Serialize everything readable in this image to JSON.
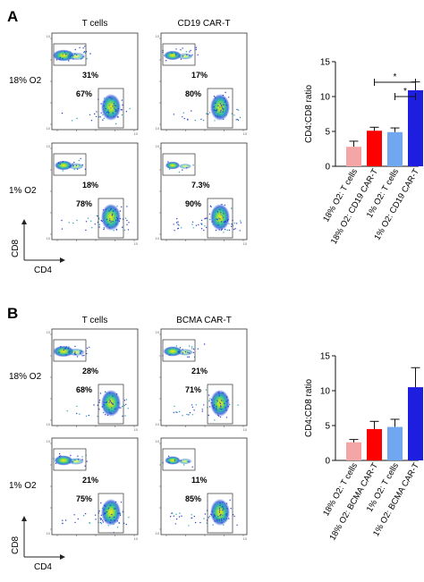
{
  "panels": [
    {
      "label": "A",
      "columns": [
        "T cells",
        "CD19 CAR-T"
      ],
      "rows": [
        "18% O2",
        "1% O2"
      ],
      "cd4_label": "CD4",
      "cd8_label": "CD8",
      "gates": [
        {
          "row": 0,
          "col": 0,
          "cd8": "31%",
          "cd4": "67%"
        },
        {
          "row": 0,
          "col": 1,
          "cd8": "17%",
          "cd4": "80%"
        },
        {
          "row": 1,
          "col": 0,
          "cd8": "18%",
          "cd4": "78%"
        },
        {
          "row": 1,
          "col": 1,
          "cd8": "7.3%",
          "cd4": "90%"
        }
      ]
    },
    {
      "label": "B",
      "columns": [
        "T cells",
        "BCMA CAR-T"
      ],
      "rows": [
        "18% O2",
        "1% O2"
      ],
      "cd4_label": "CD4",
      "cd8_label": "CD8",
      "gates": [
        {
          "row": 0,
          "col": 0,
          "cd8": "28%",
          "cd4": "68%"
        },
        {
          "row": 0,
          "col": 1,
          "cd8": "21%",
          "cd4": "71%"
        },
        {
          "row": 1,
          "col": 0,
          "cd8": "21%",
          "cd4": "75%"
        },
        {
          "row": 1,
          "col": 1,
          "cd8": "11%",
          "cd4": "85%"
        }
      ]
    }
  ],
  "chart_data": [
    {
      "type": "bar",
      "ylabel": "CD4:CD8 ratio",
      "ylim": [
        0,
        15
      ],
      "yticks": [
        0,
        5,
        10,
        15
      ],
      "categories": [
        "18% O2: T cells",
        "18% O2: CD19 CAR-T",
        "1% O2: T cells",
        "1% O2: CD19 CAR-T"
      ],
      "values": [
        2.8,
        5.1,
        4.9,
        10.9
      ],
      "errors": [
        0.8,
        0.5,
        0.6,
        1.2
      ],
      "colors": [
        "#f4a6a6",
        "#ff0000",
        "#6fa8f0",
        "#1e1ee0"
      ],
      "significance": [
        {
          "from": 1,
          "to": 3,
          "label": "*"
        },
        {
          "from": 2,
          "to": 3,
          "label": "*"
        }
      ]
    },
    {
      "type": "bar",
      "ylabel": "CD4:CD8 ratio",
      "ylim": [
        0,
        15
      ],
      "yticks": [
        0,
        5,
        10,
        15
      ],
      "categories": [
        "18% O2: T cells",
        "18% O2: BCMA CAR-T",
        "1% O2: T cells",
        "1% O2: BCMA CAR-T"
      ],
      "values": [
        2.6,
        4.5,
        4.8,
        10.5
      ],
      "errors": [
        0.4,
        1.1,
        1.1,
        2.8
      ],
      "colors": [
        "#f4a6a6",
        "#ff0000",
        "#6fa8f0",
        "#1e1ee0"
      ],
      "significance": []
    }
  ]
}
